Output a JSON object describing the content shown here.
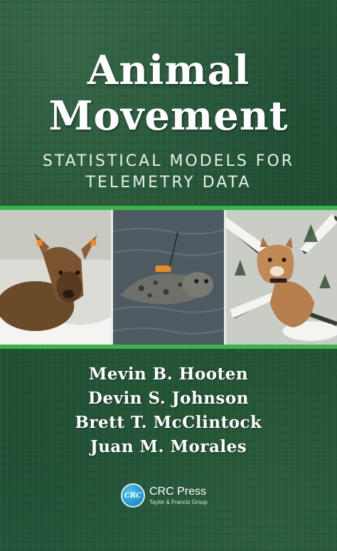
{
  "cover": {
    "title_line1": "Animal",
    "title_line2": "Movement",
    "subtitle_line1": "STATISTICAL MODELS FOR",
    "subtitle_line2": "TELEMETRY DATA",
    "authors": [
      "Mevin B. Hooten",
      "Devin S. Johnson",
      "Brett T. McClintock",
      "Juan M. Morales"
    ],
    "publisher": {
      "logo_text": "CRC",
      "name": "CRC Press",
      "subtitle": "Taylor & Francis Group"
    },
    "photos": [
      "elk-calf-photo",
      "seal-photo",
      "cougar-photo"
    ]
  },
  "colors": {
    "background": "#1f4a2c",
    "accent_stripe": "#39b54a",
    "text": "#ffffff",
    "logo_blue": "#0b78b9"
  }
}
